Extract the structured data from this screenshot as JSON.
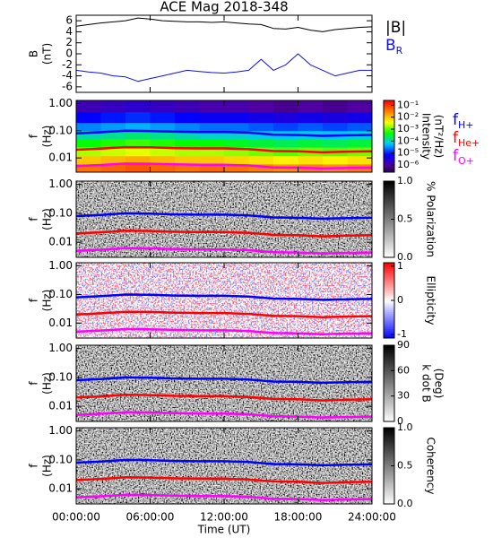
{
  "chart_data": [
    {
      "type": "line",
      "title": "ACE Mag 2018-348",
      "ylabel": "B",
      "yunit": "(nT)",
      "x": [
        0,
        1,
        2,
        3,
        4,
        5,
        6,
        7,
        8,
        9,
        10,
        11,
        12,
        13,
        14,
        15,
        16,
        17,
        18,
        19,
        20,
        21,
        22,
        23,
        24
      ],
      "xlim": [
        0,
        24
      ],
      "ylim": [
        -7,
        7
      ],
      "yticks": [
        -6,
        -4,
        -2,
        0,
        2,
        4,
        6
      ],
      "series": [
        {
          "name": "|B|",
          "color": "#000000",
          "values": [
            5.0,
            5.3,
            5.6,
            5.8,
            6.0,
            6.5,
            6.3,
            6.0,
            5.9,
            5.8,
            5.8,
            5.7,
            5.8,
            5.6,
            5.4,
            5.3,
            4.6,
            4.5,
            4.8,
            4.3,
            4.0,
            4.4,
            4.6,
            4.8,
            4.9
          ]
        },
        {
          "name": "B",
          "name_sub": "R",
          "color": "#1010e0",
          "values": [
            -3.0,
            -3.3,
            -3.5,
            -4.0,
            -4.2,
            -5.0,
            -4.5,
            -4.0,
            -3.5,
            -3.0,
            -3.2,
            -3.4,
            -3.5,
            -3.3,
            -3.0,
            -1.0,
            -3.0,
            -2.0,
            0.0,
            -2.0,
            -3.0,
            -4.0,
            -3.5,
            -3.0,
            -3.0
          ]
        }
      ]
    },
    {
      "type": "spectrogram",
      "ylabel": "f",
      "yunit": "(Hz)",
      "ylog": true,
      "xlim": [
        0,
        24
      ],
      "ylim": [
        0.003,
        1.3
      ],
      "yticks": [
        0.01,
        {
          "value": 0.1,
          "label": "0.10"
        },
        {
          "value": 1,
          "label": "1.00"
        }
      ],
      "t_edges": [
        0,
        2,
        4,
        6,
        8,
        10,
        12,
        14,
        16,
        18,
        20,
        22,
        24
      ],
      "f_edges": [
        0.003,
        0.006,
        0.012,
        0.025,
        0.05,
        0.1,
        0.2,
        0.5,
        1.3
      ],
      "z": [
        [
          -1.4,
          -1.3,
          -1.2,
          -1.3,
          -1.4,
          -1.3,
          -1.4,
          -1.5,
          -1.6,
          -1.5,
          -1.6,
          -1.5
        ],
        [
          -2.0,
          -1.9,
          -1.8,
          -1.9,
          -2.0,
          -2.0,
          -2.1,
          -2.2,
          -2.3,
          -2.2,
          -2.3,
          -2.2
        ],
        [
          -2.7,
          -2.6,
          -2.5,
          -2.6,
          -2.7,
          -2.7,
          -2.8,
          -2.9,
          -3.0,
          -2.9,
          -3.0,
          -2.9
        ],
        [
          -3.3,
          -3.2,
          -3.1,
          -3.2,
          -3.3,
          -3.3,
          -3.4,
          -3.5,
          -3.6,
          -3.5,
          -3.6,
          -3.5
        ],
        [
          -3.9,
          -3.8,
          -3.7,
          -3.8,
          -3.9,
          -4.0,
          -4.0,
          -4.1,
          -4.2,
          -4.1,
          -4.2,
          -4.1
        ],
        [
          -4.5,
          -4.4,
          -4.3,
          -4.4,
          -4.5,
          -4.6,
          -4.6,
          -4.7,
          -4.8,
          -4.7,
          -4.8,
          -4.7
        ],
        [
          -5.1,
          -5.0,
          -4.9,
          -5.0,
          -5.1,
          -5.2,
          -5.2,
          -5.3,
          -5.4,
          -5.3,
          -5.4,
          -5.3
        ],
        [
          -5.8,
          -5.7,
          -5.6,
          -5.7,
          -5.8,
          -5.9,
          -5.9,
          -6.0,
          -6.1,
          -6.0,
          -6.1,
          -6.0
        ]
      ],
      "colorbar": {
        "label": "Intensity",
        "unit": "(nT²/Hz)",
        "colormap": "rainbow",
        "lim": [
          -6.6,
          -0.6
        ],
        "ticks": [
          {
            "value": -1,
            "label": "10⁻¹"
          },
          {
            "value": -2,
            "label": "10⁻²"
          },
          {
            "value": -3,
            "label": "10⁻³"
          },
          {
            "value": -4,
            "label": "10⁻⁴"
          },
          {
            "value": -5,
            "label": "10⁻⁵"
          },
          {
            "value": -6,
            "label": "10⁻⁶"
          }
        ]
      },
      "x": [
        0,
        2,
        4,
        6,
        8,
        10,
        12,
        14,
        16,
        18,
        20,
        22,
        24
      ],
      "series": [
        {
          "name": "f",
          "name_sub": "H+",
          "color": "#0000ff",
          "values": [
            0.08,
            0.088,
            0.1,
            0.098,
            0.092,
            0.09,
            0.09,
            0.085,
            0.072,
            0.07,
            0.065,
            0.068,
            0.07
          ]
        },
        {
          "name": "f",
          "name_sub": "He+",
          "color": "#ff0000",
          "values": [
            0.02,
            0.022,
            0.025,
            0.0245,
            0.023,
            0.0225,
            0.0225,
            0.021,
            0.018,
            0.0175,
            0.016,
            0.017,
            0.0175
          ]
        },
        {
          "name": "f",
          "name_sub": "O+",
          "color": "#ff00ff",
          "values": [
            0.005,
            0.0055,
            0.0062,
            0.0061,
            0.0058,
            0.0056,
            0.0056,
            0.0053,
            0.0045,
            0.0044,
            0.0041,
            0.0043,
            0.0044
          ]
        }
      ]
    },
    {
      "type": "spectrogram",
      "ylabel": "f",
      "yunit": "(Hz)",
      "ylog": true,
      "xlim": [
        0,
        24
      ],
      "ylim": [
        0.003,
        1.3
      ],
      "yticks": [
        0.01,
        {
          "value": 0.1,
          "label": "0.10"
        },
        {
          "value": 1,
          "label": "1.00"
        }
      ],
      "colorbar": {
        "label": "% Polarization",
        "colormap": "gray",
        "lim": [
          0,
          1
        ],
        "ticks": [
          {
            "value": 1,
            "label": "1.0"
          },
          0.5,
          {
            "value": 0,
            "label": "0.0"
          }
        ]
      },
      "x": [
        0,
        2,
        4,
        6,
        8,
        10,
        12,
        14,
        16,
        18,
        20,
        22,
        24
      ],
      "series": [
        {
          "color": "#0000ff",
          "values": [
            0.08,
            0.088,
            0.1,
            0.098,
            0.092,
            0.09,
            0.09,
            0.085,
            0.072,
            0.07,
            0.065,
            0.068,
            0.07
          ]
        },
        {
          "color": "#ff0000",
          "values": [
            0.02,
            0.022,
            0.025,
            0.0245,
            0.023,
            0.0225,
            0.0225,
            0.021,
            0.018,
            0.0175,
            0.016,
            0.017,
            0.0175
          ]
        },
        {
          "color": "#ff00ff",
          "values": [
            0.005,
            0.0055,
            0.0062,
            0.0061,
            0.0058,
            0.0056,
            0.0056,
            0.0053,
            0.0045,
            0.0044,
            0.0041,
            0.0043,
            0.0044
          ]
        }
      ]
    },
    {
      "type": "spectrogram",
      "ylabel": "f",
      "yunit": "(Hz)",
      "ylog": true,
      "xlim": [
        0,
        24
      ],
      "ylim": [
        0.003,
        1.3
      ],
      "yticks": [
        0.01,
        {
          "value": 0.1,
          "label": "0.10"
        },
        {
          "value": 1,
          "label": "1.00"
        }
      ],
      "colorbar": {
        "label": "Ellipticity",
        "colormap": "bwr",
        "lim": [
          -1.1,
          1.1
        ],
        "ticks": [
          1,
          0,
          -1
        ]
      },
      "x": [
        0,
        2,
        4,
        6,
        8,
        10,
        12,
        14,
        16,
        18,
        20,
        22,
        24
      ],
      "series": [
        {
          "color": "#0000ff",
          "values": [
            0.08,
            0.088,
            0.1,
            0.098,
            0.092,
            0.09,
            0.09,
            0.085,
            0.072,
            0.07,
            0.065,
            0.068,
            0.07
          ]
        },
        {
          "color": "#ff0000",
          "values": [
            0.02,
            0.022,
            0.025,
            0.0245,
            0.023,
            0.0225,
            0.0225,
            0.021,
            0.018,
            0.0175,
            0.016,
            0.017,
            0.0175
          ]
        },
        {
          "color": "#ff00ff",
          "values": [
            0.005,
            0.0055,
            0.0062,
            0.0061,
            0.0058,
            0.0056,
            0.0056,
            0.0053,
            0.0045,
            0.0044,
            0.0041,
            0.0043,
            0.0044
          ]
        }
      ]
    },
    {
      "type": "spectrogram",
      "ylabel": "f",
      "yunit": "(Hz)",
      "ylog": true,
      "xlim": [
        0,
        24
      ],
      "ylim": [
        0.003,
        1.3
      ],
      "yticks": [
        0.01,
        {
          "value": 0.1,
          "label": "0.10"
        },
        {
          "value": 1,
          "label": "1.00"
        }
      ],
      "colorbar": {
        "label": "k dot B",
        "unit": "(Deg)",
        "colormap": "gray",
        "lim": [
          0,
          90
        ],
        "ticks": [
          90,
          60,
          30,
          0
        ]
      },
      "x": [
        0,
        2,
        4,
        6,
        8,
        10,
        12,
        14,
        16,
        18,
        20,
        22,
        24
      ],
      "series": [
        {
          "color": "#0000ff",
          "values": [
            0.08,
            0.088,
            0.1,
            0.098,
            0.092,
            0.09,
            0.09,
            0.085,
            0.072,
            0.07,
            0.065,
            0.068,
            0.07
          ]
        },
        {
          "color": "#ff0000",
          "values": [
            0.02,
            0.022,
            0.025,
            0.0245,
            0.023,
            0.0225,
            0.0225,
            0.021,
            0.018,
            0.0175,
            0.016,
            0.017,
            0.0175
          ]
        },
        {
          "color": "#ff00ff",
          "values": [
            0.005,
            0.0055,
            0.0062,
            0.0061,
            0.0058,
            0.0056,
            0.0056,
            0.0053,
            0.0045,
            0.0044,
            0.0041,
            0.0043,
            0.0044
          ]
        }
      ]
    },
    {
      "type": "spectrogram",
      "ylabel": "f",
      "yunit": "(Hz)",
      "ylog": true,
      "xlim": [
        0,
        24
      ],
      "ylim": [
        0.003,
        1.3
      ],
      "yticks": [
        0.01,
        {
          "value": 0.1,
          "label": "0.10"
        },
        {
          "value": 1,
          "label": "1.00"
        }
      ],
      "colorbar": {
        "label": "Coherency",
        "colormap": "gray",
        "lim": [
          0,
          1
        ],
        "ticks": [
          {
            "value": 1,
            "label": "1.0"
          },
          0.5,
          {
            "value": 0,
            "label": "0.0"
          }
        ]
      },
      "x": [
        0,
        2,
        4,
        6,
        8,
        10,
        12,
        14,
        16,
        18,
        20,
        22,
        24
      ],
      "series": [
        {
          "color": "#0000ff",
          "values": [
            0.08,
            0.088,
            0.1,
            0.098,
            0.092,
            0.09,
            0.09,
            0.085,
            0.072,
            0.07,
            0.065,
            0.068,
            0.07
          ]
        },
        {
          "color": "#ff0000",
          "values": [
            0.02,
            0.022,
            0.025,
            0.0245,
            0.023,
            0.0225,
            0.0225,
            0.021,
            0.018,
            0.0175,
            0.016,
            0.017,
            0.0175
          ]
        },
        {
          "color": "#ff00ff",
          "values": [
            0.005,
            0.0055,
            0.0062,
            0.0061,
            0.0058,
            0.0056,
            0.0056,
            0.0053,
            0.0045,
            0.0044,
            0.0041,
            0.0043,
            0.0044
          ]
        }
      ],
      "xlabel": "Time (UT)",
      "xticks": [
        {
          "value": 0,
          "label": "00:00:00"
        },
        {
          "value": 6,
          "label": "06:00:00"
        },
        {
          "value": 12,
          "label": "12:00:00"
        },
        {
          "value": 18,
          "label": "18:00:00"
        },
        {
          "value": 24,
          "label": "24:00:00"
        }
      ]
    }
  ]
}
